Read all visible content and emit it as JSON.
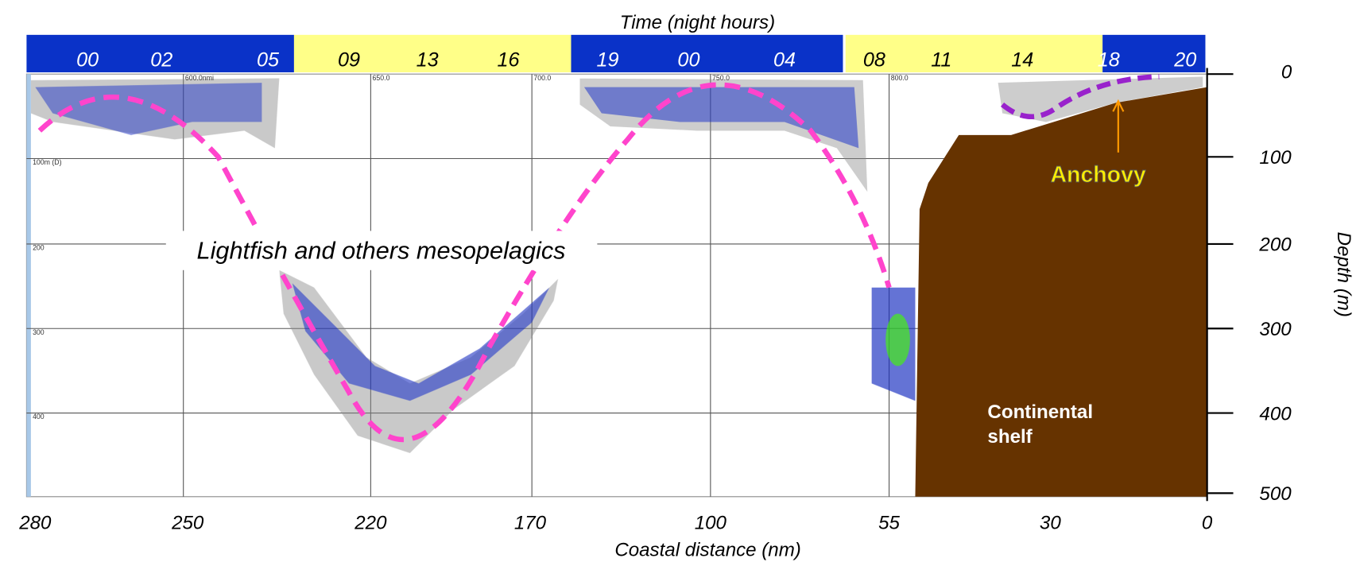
{
  "title": "Time (night hours)",
  "time_labels": [
    "00",
    "02",
    "05",
    "09",
    "13",
    "16",
    "19",
    "00",
    "04",
    "08",
    "11",
    "14",
    "18",
    "20"
  ],
  "distance_axis": {
    "label": "Coastal distance (nm)",
    "ticks": [
      "280",
      "250",
      "220",
      "170",
      "100",
      "55",
      "30",
      "0"
    ]
  },
  "depth_axis": {
    "label": "Depth (m)",
    "ticks": [
      "0",
      "100",
      "200",
      "300",
      "400",
      "500"
    ]
  },
  "echogram_labels": {
    "top": [
      "600.0nmi",
      "650.0",
      "700.0",
      "750.0",
      "800.0"
    ],
    "left": [
      "100m (D)",
      "200",
      "300",
      "400"
    ]
  },
  "annotations": {
    "mesopelagics": "Lightfish and others mesopelagics",
    "anchovy": "Anchovy",
    "shelf": [
      "Continental",
      "shelf"
    ]
  }
}
